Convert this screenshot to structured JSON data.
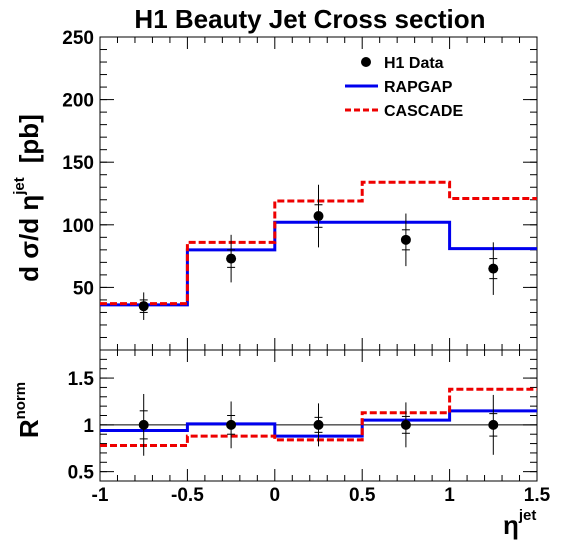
{
  "title": "H1 Beauty Jet Cross section",
  "chart_data": [
    {
      "panel": "main",
      "type": "line",
      "ylabel_parts": {
        "d1": "d σ/d η",
        "sup": "jet",
        "unit": "[pb]"
      },
      "xlim": [
        -1,
        1.5
      ],
      "ylim": [
        0,
        250
      ],
      "yticks": [
        50,
        100,
        150,
        200,
        250
      ],
      "bin_edges": [
        -1,
        -0.5,
        0,
        0.5,
        1,
        1.5
      ],
      "data": {
        "name": "H1 Data",
        "x": [
          -0.75,
          -0.25,
          0.25,
          0.75,
          1.25
        ],
        "y": [
          35,
          73,
          107,
          88,
          65
        ],
        "err_stat": [
          5,
          7,
          9,
          8,
          8
        ],
        "err_tot": [
          11,
          19,
          25,
          21,
          21
        ]
      },
      "series": [
        {
          "name": "RAPGAP",
          "color": "#0000ee",
          "style": "solid",
          "values": [
            36,
            80,
            102,
            102,
            81
          ]
        },
        {
          "name": "CASCADE",
          "color": "#ee0000",
          "style": "dashed",
          "values": [
            37,
            86,
            119,
            134,
            121
          ]
        }
      ],
      "legend_position": "top-right"
    },
    {
      "panel": "ratio",
      "type": "line",
      "ylabel_parts": {
        "main": "R",
        "sup": "norm"
      },
      "xlabel_parts": {
        "main": "η",
        "sup": "jet"
      },
      "xlim": [
        -1,
        1.5
      ],
      "ylim": [
        0.4,
        1.8
      ],
      "yticks": [
        0.5,
        1,
        1.5
      ],
      "ytick_labels": [
        "0.5",
        "1",
        "1.5"
      ],
      "xticks": [
        -1,
        -0.5,
        0,
        0.5,
        1,
        1.5
      ],
      "xtick_labels": [
        "-1",
        "-0.5",
        "0",
        "0.5",
        "1",
        "1.5"
      ],
      "reference_line": 1,
      "bin_edges": [
        -1,
        -0.5,
        0,
        0.5,
        1,
        1.5
      ],
      "data": {
        "name": "H1 Data",
        "x": [
          -0.75,
          -0.25,
          0.25,
          0.75,
          1.25
        ],
        "y": [
          1,
          1,
          1,
          1,
          1
        ],
        "err_stat": [
          0.15,
          0.1,
          0.08,
          0.09,
          0.12
        ],
        "err_tot": [
          0.33,
          0.25,
          0.23,
          0.24,
          0.32
        ]
      },
      "series": [
        {
          "name": "RAPGAP",
          "color": "#0000ee",
          "style": "solid",
          "values": [
            0.94,
            1.01,
            0.88,
            1.05,
            1.15
          ]
        },
        {
          "name": "CASCADE",
          "color": "#ee0000",
          "style": "dashed",
          "values": [
            0.78,
            0.88,
            0.84,
            1.13,
            1.38
          ]
        }
      ]
    }
  ]
}
